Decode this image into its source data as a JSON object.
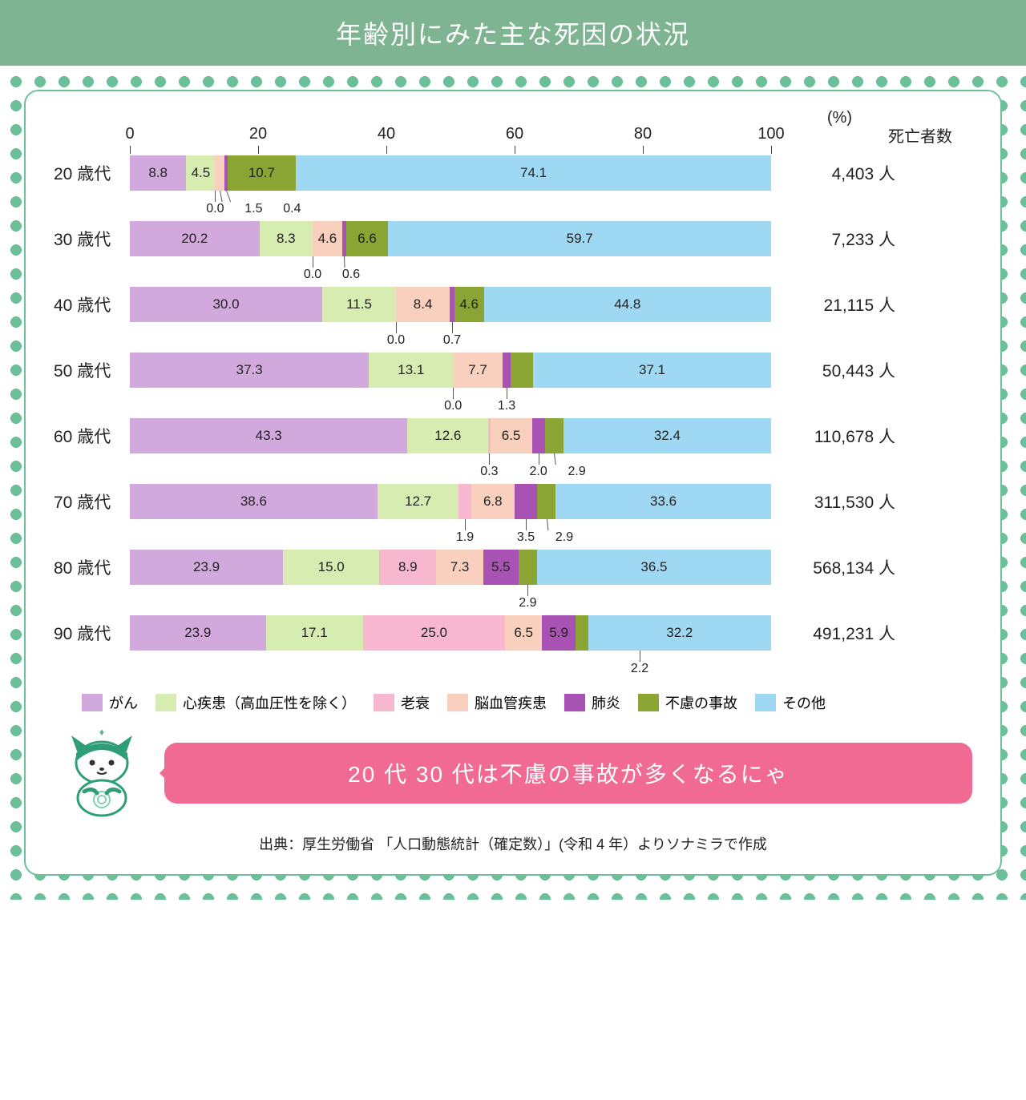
{
  "title": "年齢別にみた主な死因の状況",
  "axis": {
    "min": 0,
    "max": 100,
    "ticks": [
      0,
      20,
      40,
      60,
      80,
      100
    ],
    "unit_label": "(%)",
    "deaths_header": "死亡者数"
  },
  "colors": {
    "header_band": "#7fb493",
    "dot": "#6bc09a",
    "panel_border": "#6bc09a",
    "speech_bg": "#f06a93",
    "speech_text": "#ffffff",
    "text": "#222222"
  },
  "series": [
    {
      "key": "cancer",
      "label": "がん",
      "color": "#d2a9dc"
    },
    {
      "key": "heart",
      "label": "心疾患（高血圧性を除く）",
      "color": "#d7ecb0"
    },
    {
      "key": "senility",
      "label": "老衰",
      "color": "#f7b7cf"
    },
    {
      "key": "cerebro",
      "label": "脳血管疾患",
      "color": "#f9cfbd"
    },
    {
      "key": "pneumonia",
      "label": "肺炎",
      "color": "#a852b3"
    },
    {
      "key": "accident",
      "label": "不慮の事故",
      "color": "#8aa534"
    },
    {
      "key": "other",
      "label": "その他",
      "color": "#9fd8f3"
    }
  ],
  "rows": [
    {
      "label": "20 歳代",
      "deaths": "4,403 人",
      "values": {
        "cancer": 8.8,
        "heart": 4.5,
        "senility": 0.0,
        "cerebro": 1.5,
        "pneumonia": 0.4,
        "accident": 10.7,
        "other": 74.1
      },
      "callouts": [
        "senility",
        "cerebro",
        "pneumonia"
      ]
    },
    {
      "label": "30 歳代",
      "deaths": "7,233 人",
      "values": {
        "cancer": 20.2,
        "heart": 8.3,
        "senility": 0.0,
        "cerebro": 4.6,
        "pneumonia": 0.6,
        "accident": 6.6,
        "other": 59.7
      },
      "callouts": [
        "senility",
        "pneumonia"
      ]
    },
    {
      "label": "40 歳代",
      "deaths": "21,115 人",
      "values": {
        "cancer": 30.0,
        "heart": 11.5,
        "senility": 0.0,
        "cerebro": 8.4,
        "pneumonia": 0.7,
        "accident": 4.6,
        "other": 44.8
      },
      "callouts": [
        "senility",
        "pneumonia"
      ]
    },
    {
      "label": "50 歳代",
      "deaths": "50,443 人",
      "values": {
        "cancer": 37.3,
        "heart": 13.1,
        "senility": 0.0,
        "cerebro": 7.7,
        "pneumonia": 1.3,
        "accident": 3.5,
        "other": 37.1
      },
      "callouts": [
        "senility",
        "pneumonia"
      ]
    },
    {
      "label": "60 歳代",
      "deaths": "110,678 人",
      "values": {
        "cancer": 43.3,
        "heart": 12.6,
        "senility": 0.3,
        "cerebro": 6.5,
        "pneumonia": 2.0,
        "accident": 2.9,
        "other": 32.4
      },
      "callouts": [
        "senility",
        "pneumonia",
        "accident"
      ]
    },
    {
      "label": "70 歳代",
      "deaths": "311,530 人",
      "values": {
        "cancer": 38.6,
        "heart": 12.7,
        "senility": 1.9,
        "cerebro": 6.8,
        "pneumonia": 3.5,
        "accident": 2.9,
        "other": 33.6
      },
      "callouts": [
        "senility",
        "pneumonia",
        "accident"
      ]
    },
    {
      "label": "80 歳代",
      "deaths": "568,134 人",
      "values": {
        "cancer": 23.9,
        "heart": 15.0,
        "senility": 8.9,
        "cerebro": 7.3,
        "pneumonia": 5.5,
        "accident": 2.9,
        "other": 36.5
      },
      "callouts": [
        "accident"
      ]
    },
    {
      "label": "90 歳代",
      "deaths": "491,231 人",
      "values": {
        "cancer": 23.9,
        "heart": 17.1,
        "senility": 25.0,
        "cerebro": 6.5,
        "pneumonia": 5.9,
        "accident": 2.2,
        "other": 32.2
      },
      "callouts": [
        "accident"
      ]
    }
  ],
  "speech": "20 代 30 代は不慮の事故が多くなるにゃ",
  "source": "出典：厚生労働省 「人口動態統計（確定数）」(令和 4 年）よりソナミラで作成"
}
